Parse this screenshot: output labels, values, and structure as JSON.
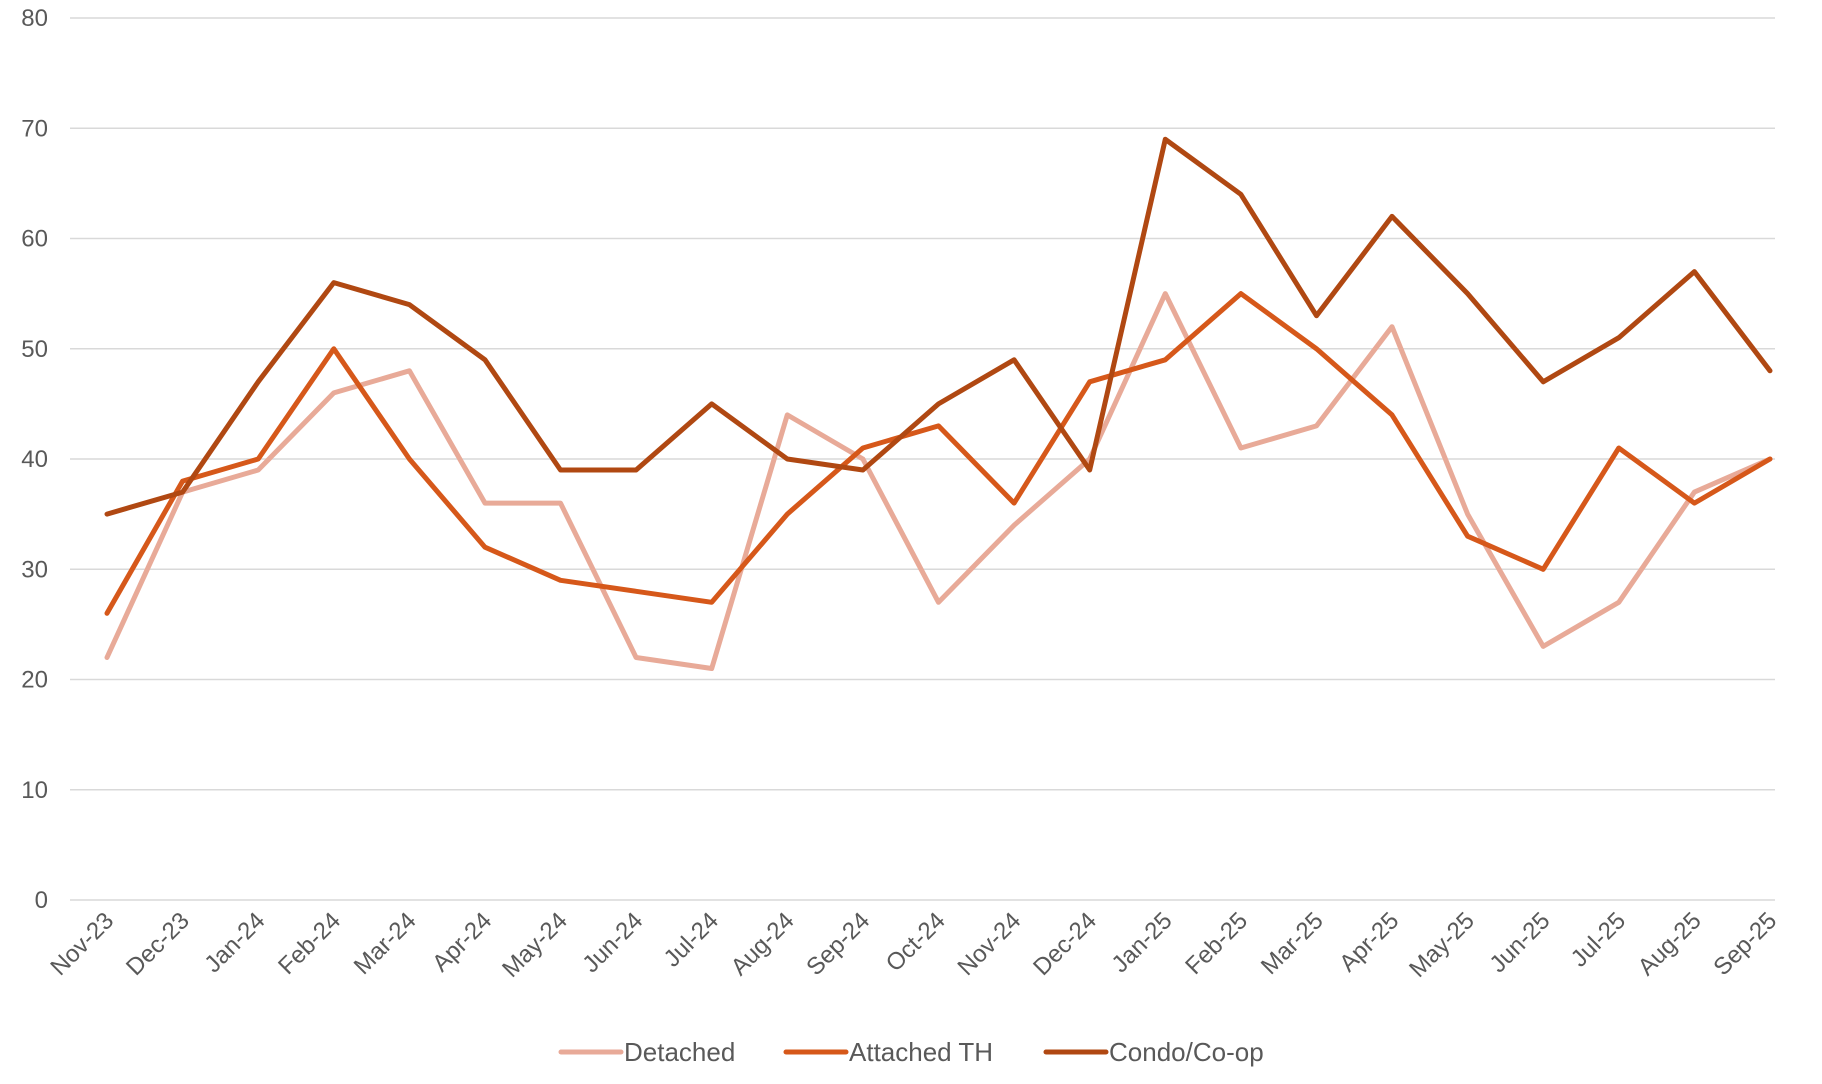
{
  "chart_data": {
    "type": "line",
    "title": "",
    "xlabel": "",
    "ylabel": "",
    "ylim": [
      0,
      80
    ],
    "yticks": [
      0,
      10,
      20,
      30,
      40,
      50,
      60,
      70,
      80
    ],
    "grid": true,
    "legend_position": "bottom",
    "categories": [
      "Nov-23",
      "Dec-23",
      "Jan-24",
      "Feb-24",
      "Mar-24",
      "Apr-24",
      "May-24",
      "Jun-24",
      "Jul-24",
      "Aug-24",
      "Sep-24",
      "Oct-24",
      "Nov-24",
      "Dec-24",
      "Jan-25",
      "Feb-25",
      "Mar-25",
      "Apr-25",
      "May-25",
      "Jun-25",
      "Jul-25",
      "Aug-25",
      "Sep-25"
    ],
    "series": [
      {
        "name": "Detached",
        "color": "#e8aa98",
        "values": [
          22,
          37,
          39,
          46,
          48,
          36,
          36,
          22,
          21,
          44,
          40,
          27,
          34,
          40,
          55,
          41,
          43,
          52,
          35,
          23,
          27,
          37,
          40
        ]
      },
      {
        "name": "Attached TH",
        "color": "#d6581a",
        "values": [
          26,
          38,
          40,
          50,
          40,
          32,
          29,
          28,
          27,
          35,
          41,
          43,
          36,
          47,
          49,
          55,
          50,
          44,
          33,
          30,
          41,
          36,
          40
        ]
      },
      {
        "name": "Condo/Co-op",
        "color": "#b04812",
        "values": [
          35,
          37,
          47,
          56,
          54,
          49,
          39,
          39,
          45,
          40,
          39,
          45,
          49,
          39,
          69,
          64,
          53,
          62,
          55,
          47,
          51,
          57,
          48
        ]
      }
    ]
  }
}
